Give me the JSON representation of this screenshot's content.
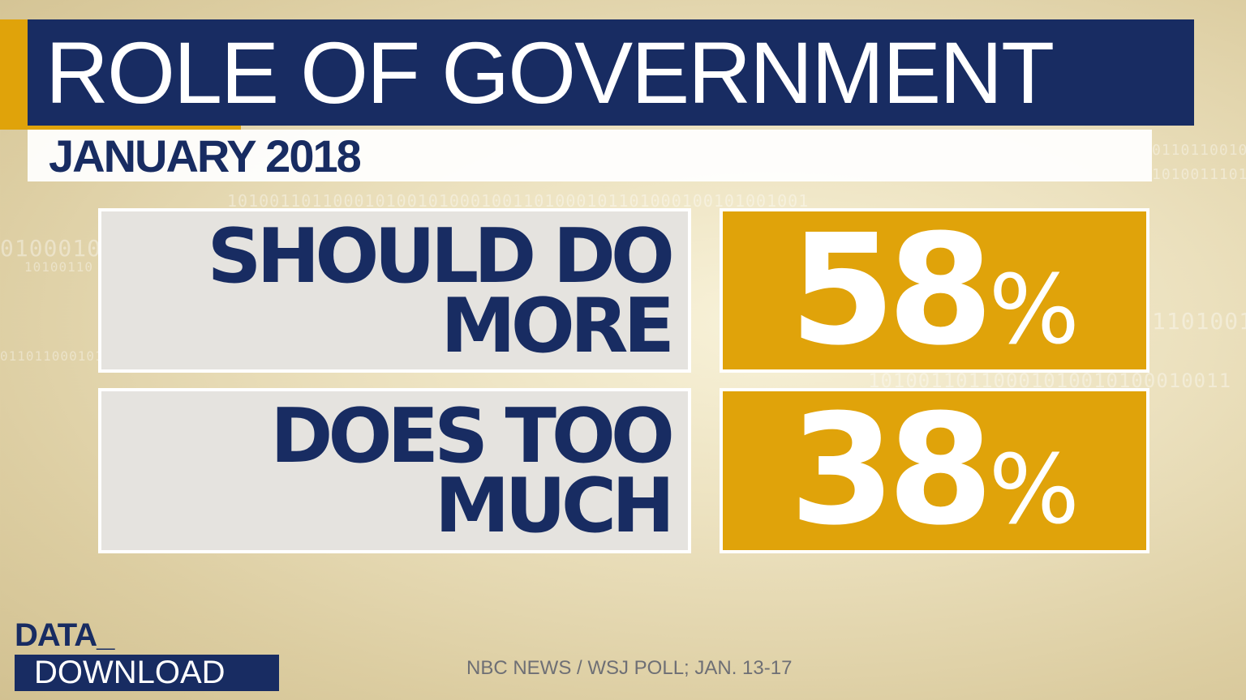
{
  "header": {
    "title": "ROLE OF GOVERNMENT",
    "subtitle": "JANUARY 2018"
  },
  "results": [
    {
      "label_lines": [
        "SHOULD DO",
        "MORE"
      ],
      "value": "58",
      "unit": "%"
    },
    {
      "label_lines": [
        "DOES TOO",
        "MUCH"
      ],
      "value": "38",
      "unit": "%"
    }
  ],
  "logo": {
    "line1": "DATA_",
    "line2": "DOWNLOAD"
  },
  "source": "NBC NEWS / WSJ POLL; JAN. 13-17",
  "colors": {
    "navy": "#182c62",
    "gold": "#e0a30a",
    "label_box": "#e5e3df",
    "source_text": "#6e6f75"
  }
}
